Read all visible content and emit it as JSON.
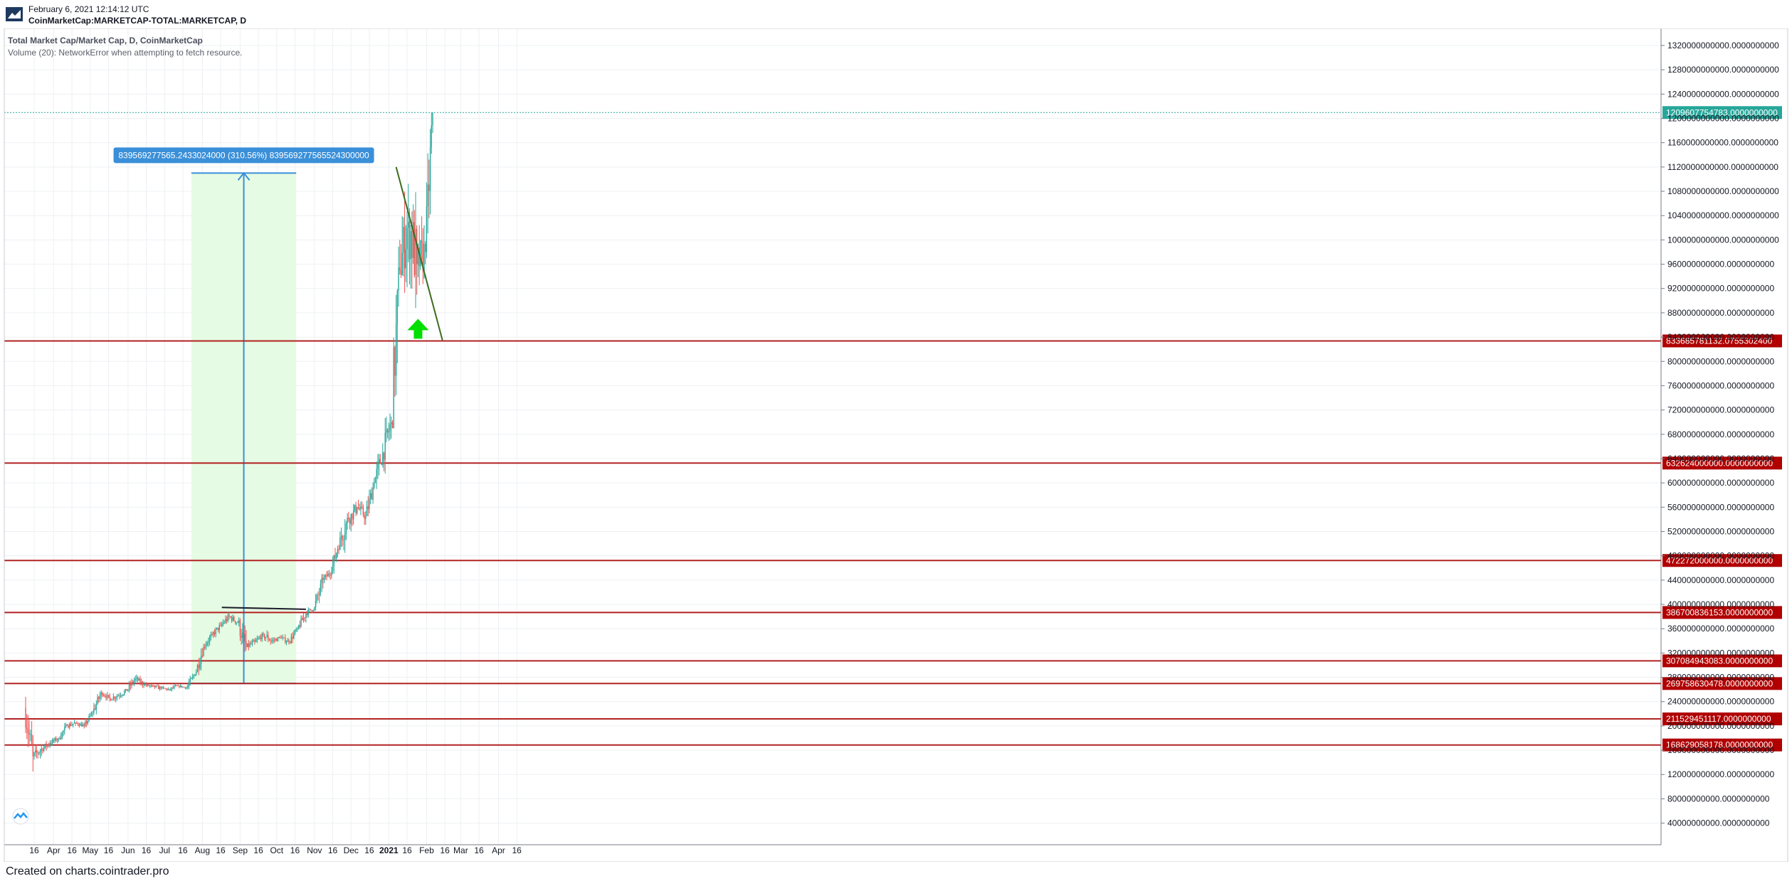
{
  "header": {
    "date": "February 6, 2021 12:14:12 UTC",
    "symbol": "CoinMarketCap:MARKETCAP-TOTAL:MARKETCAP, D"
  },
  "legend": {
    "title": "Total Market Cap/Market Cap, D, CoinMarketCap",
    "volume_note": "Volume (20): NetworkError when attempting to fetch resource."
  },
  "footer": {
    "text": "Created on charts.cointrader.pro"
  },
  "colors": {
    "up": "#26a69a",
    "down": "#ef5350",
    "level": "#b22222",
    "level_label_bg": "#b00000",
    "measure": "#3a8fd9",
    "measure_fill": "#e6fbe3",
    "price_line": "#26a69a",
    "trend": "#3d6b1f",
    "arrow": "#00e000"
  },
  "chart_data": {
    "type": "candlestick",
    "title": "Total Market Cap/Market Cap, D, CoinMarketCap",
    "x_ticks": [
      {
        "label": "16",
        "date": "2020-03-16"
      },
      {
        "label": "Apr",
        "date": "2020-04-01"
      },
      {
        "label": "16",
        "date": "2020-04-16"
      },
      {
        "label": "May",
        "date": "2020-05-01"
      },
      {
        "label": "16",
        "date": "2020-05-16"
      },
      {
        "label": "Jun",
        "date": "2020-06-01"
      },
      {
        "label": "16",
        "date": "2020-06-16"
      },
      {
        "label": "Jul",
        "date": "2020-07-01"
      },
      {
        "label": "16",
        "date": "2020-07-16"
      },
      {
        "label": "Aug",
        "date": "2020-08-01"
      },
      {
        "label": "16",
        "date": "2020-08-16"
      },
      {
        "label": "Sep",
        "date": "2020-09-01"
      },
      {
        "label": "16",
        "date": "2020-09-16"
      },
      {
        "label": "Oct",
        "date": "2020-10-01"
      },
      {
        "label": "16",
        "date": "2020-10-16"
      },
      {
        "label": "Nov",
        "date": "2020-11-01"
      },
      {
        "label": "16",
        "date": "2020-11-16"
      },
      {
        "label": "Dec",
        "date": "2020-12-01"
      },
      {
        "label": "16",
        "date": "2020-12-16"
      },
      {
        "label": "2021",
        "date": "2021-01-01"
      },
      {
        "label": "16",
        "date": "2021-01-16"
      },
      {
        "label": "Feb",
        "date": "2021-02-01"
      },
      {
        "label": "16",
        "date": "2021-02-16"
      },
      {
        "label": "Mar",
        "date": "2021-03-01"
      },
      {
        "label": "16",
        "date": "2021-03-16"
      },
      {
        "label": "Apr",
        "date": "2021-04-01"
      },
      {
        "label": "16",
        "date": "2021-04-16"
      }
    ],
    "y_ticks": [
      "40000000000.0000000000",
      "80000000000.0000000000",
      "120000000000.0000000000",
      "160000000000.0000000000",
      "200000000000.0000000000",
      "240000000000.0000000000",
      "280000000000.0000000000",
      "320000000000.0000000000",
      "360000000000.0000000000",
      "400000000000.0000000000",
      "440000000000.0000000000",
      "480000000000.0000000000",
      "520000000000.0000000000",
      "560000000000.0000000000",
      "600000000000.0000000000",
      "640000000000.0000000000",
      "680000000000.0000000000",
      "720000000000.0000000000",
      "760000000000.0000000000",
      "800000000000.0000000000",
      "840000000000.0000000000",
      "880000000000.0000000000",
      "920000000000.0000000000",
      "960000000000.0000000000",
      "1000000000000.0000000000",
      "1040000000000.0000000000",
      "1080000000000.0000000000",
      "1120000000000.0000000000",
      "1160000000000.0000000000",
      "1200000000000.0000000000",
      "1240000000000.0000000000",
      "1280000000000.0000000000",
      "1320000000000.0000000000"
    ],
    "current_price": {
      "value": 1209607754783,
      "label": "1209607754783.0000000000"
    },
    "levels": [
      {
        "value": 833685781132,
        "label": "833685781132.0755302400"
      },
      {
        "value": 632624000000,
        "label": "632624000000.0000000000"
      },
      {
        "value": 472272000000,
        "label": "472272000000.0000000000"
      },
      {
        "value": 386700836153,
        "label": "386700836153.0000000000"
      },
      {
        "value": 307084943083,
        "label": "307084943083.0000000000"
      },
      {
        "value": 269758630478,
        "label": "269758630478.0000000000"
      },
      {
        "value": 211529451117,
        "label": "211529451117.0000000000"
      },
      {
        "value": 168629058178,
        "label": "168629058178.0000000000"
      }
    ],
    "measure": {
      "label": "839569277565.2433024000 (310.56%) 839569277565524300000",
      "from_date": "2020-07-23",
      "to_date": "2020-10-17",
      "low": 270000000000,
      "high": 1110000000000
    },
    "trendline": {
      "from_date": "2021-01-07",
      "from_value": 1120000000000,
      "to_date": "2021-02-14",
      "to_value": 835000000000
    },
    "flat_line": {
      "from_date": "2020-08-17",
      "from_value": 395000000000,
      "to_date": "2020-10-25",
      "to_value": 392000000000
    },
    "arrow": {
      "date": "2021-01-25",
      "value": 842000000000
    },
    "candles_weekly": [
      [
        "2020-03-09",
        230,
        248,
        125,
        150
      ],
      [
        "2020-03-16",
        150,
        172,
        130,
        162
      ],
      [
        "2020-03-23",
        162,
        180,
        150,
        172
      ],
      [
        "2020-03-30",
        172,
        186,
        165,
        180
      ],
      [
        "2020-04-06",
        180,
        205,
        175,
        200
      ],
      [
        "2020-04-13",
        200,
        210,
        190,
        205
      ],
      [
        "2020-04-20",
        205,
        212,
        195,
        200
      ],
      [
        "2020-04-27",
        200,
        225,
        198,
        222
      ],
      [
        "2020-05-04",
        222,
        260,
        218,
        255
      ],
      [
        "2020-05-11",
        255,
        262,
        240,
        245
      ],
      [
        "2020-05-18",
        245,
        262,
        238,
        250
      ],
      [
        "2020-05-25",
        250,
        262,
        240,
        258
      ],
      [
        "2020-06-01",
        258,
        285,
        255,
        278
      ],
      [
        "2020-06-08",
        278,
        285,
        262,
        268
      ],
      [
        "2020-06-15",
        268,
        275,
        258,
        265
      ],
      [
        "2020-06-22",
        265,
        272,
        256,
        262
      ],
      [
        "2020-06-29",
        262,
        268,
        255,
        260
      ],
      [
        "2020-07-06",
        260,
        272,
        256,
        266
      ],
      [
        "2020-07-13",
        266,
        270,
        260,
        263
      ],
      [
        "2020-07-20",
        263,
        290,
        260,
        285
      ],
      [
        "2020-07-27",
        285,
        335,
        282,
        330
      ],
      [
        "2020-08-03",
        330,
        355,
        325,
        350
      ],
      [
        "2020-08-10",
        350,
        372,
        345,
        365
      ],
      [
        "2020-08-17",
        365,
        392,
        360,
        380
      ],
      [
        "2020-08-24",
        380,
        388,
        362,
        370
      ],
      [
        "2020-08-31",
        370,
        395,
        318,
        330
      ],
      [
        "2020-09-07",
        330,
        345,
        318,
        338
      ],
      [
        "2020-09-14",
        338,
        355,
        332,
        350
      ],
      [
        "2020-09-21",
        350,
        358,
        320,
        340
      ],
      [
        "2020-09-28",
        340,
        350,
        330,
        345
      ],
      [
        "2020-10-05",
        345,
        352,
        330,
        338
      ],
      [
        "2020-10-12",
        338,
        365,
        335,
        360
      ],
      [
        "2020-10-19",
        360,
        392,
        355,
        385
      ],
      [
        "2020-10-26",
        385,
        402,
        378,
        395
      ],
      [
        "2020-11-02",
        395,
        450,
        390,
        440
      ],
      [
        "2020-11-09",
        440,
        462,
        430,
        455
      ],
      [
        "2020-11-16",
        455,
        520,
        450,
        510
      ],
      [
        "2020-11-23",
        510,
        580,
        480,
        540
      ],
      [
        "2020-11-30",
        540,
        580,
        520,
        560
      ],
      [
        "2020-12-07",
        560,
        575,
        525,
        545
      ],
      [
        "2020-12-14",
        545,
        610,
        540,
        600
      ],
      [
        "2020-12-21",
        600,
        680,
        590,
        650
      ],
      [
        "2020-12-28",
        650,
        720,
        610,
        700
      ],
      [
        "2021-01-04",
        700,
        1000,
        690,
        950
      ],
      [
        "2021-01-11",
        950,
        1110,
        850,
        1030
      ],
      [
        "2021-01-18",
        1030,
        1170,
        840,
        960
      ],
      [
        "2021-01-25",
        960,
        1050,
        860,
        980
      ],
      [
        "2021-02-01",
        980,
        1210,
        970,
        1209.6
      ]
    ]
  }
}
